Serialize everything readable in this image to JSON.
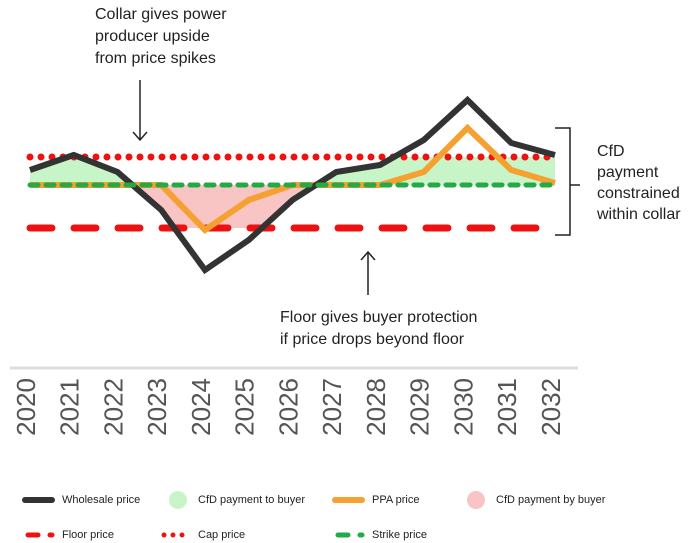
{
  "chart_data": {
    "type": "line",
    "categories": [
      "2020",
      "2021",
      "2022",
      "2023",
      "2024",
      "2025",
      "2026",
      "2027",
      "2028",
      "2029",
      "2030",
      "2031",
      "2032"
    ],
    "series": [
      {
        "name": "Wholesale price",
        "color": "#333333",
        "values": [
          130,
          145,
          128,
          90,
          30,
          60,
          100,
          128,
          135,
          160,
          200,
          157,
          145
        ]
      },
      {
        "name": "PPA price",
        "color": "#f5a030",
        "values": [
          115,
          115,
          115,
          115,
          70,
          100,
          115,
          115,
          115,
          128,
          172,
          130,
          117
        ]
      }
    ],
    "reference_lines": [
      {
        "name": "Floor price",
        "color": "#ee1111",
        "value": 72,
        "style": "dashed"
      },
      {
        "name": "Cap price",
        "color": "#ee1111",
        "value": 143,
        "style": "dotted"
      },
      {
        "name": "Strike price",
        "color": "#22aa44",
        "value": 115,
        "style": "dashed"
      }
    ],
    "areas": [
      {
        "name": "CfD payment to buyer",
        "color": "#c8f5c8"
      },
      {
        "name": "CfD payment by buyer",
        "color": "#f8c4c4"
      }
    ],
    "ylim": [
      0,
      300
    ],
    "annotations": [
      {
        "lines": [
          "Collar gives power",
          "producer upside",
          "from price spikes"
        ]
      },
      {
        "lines": [
          "Floor gives buyer protection",
          "if price drops beyond floor"
        ]
      },
      {
        "lines": [
          "CfD",
          "payment",
          "constrained",
          "within collar"
        ]
      }
    ]
  }
}
